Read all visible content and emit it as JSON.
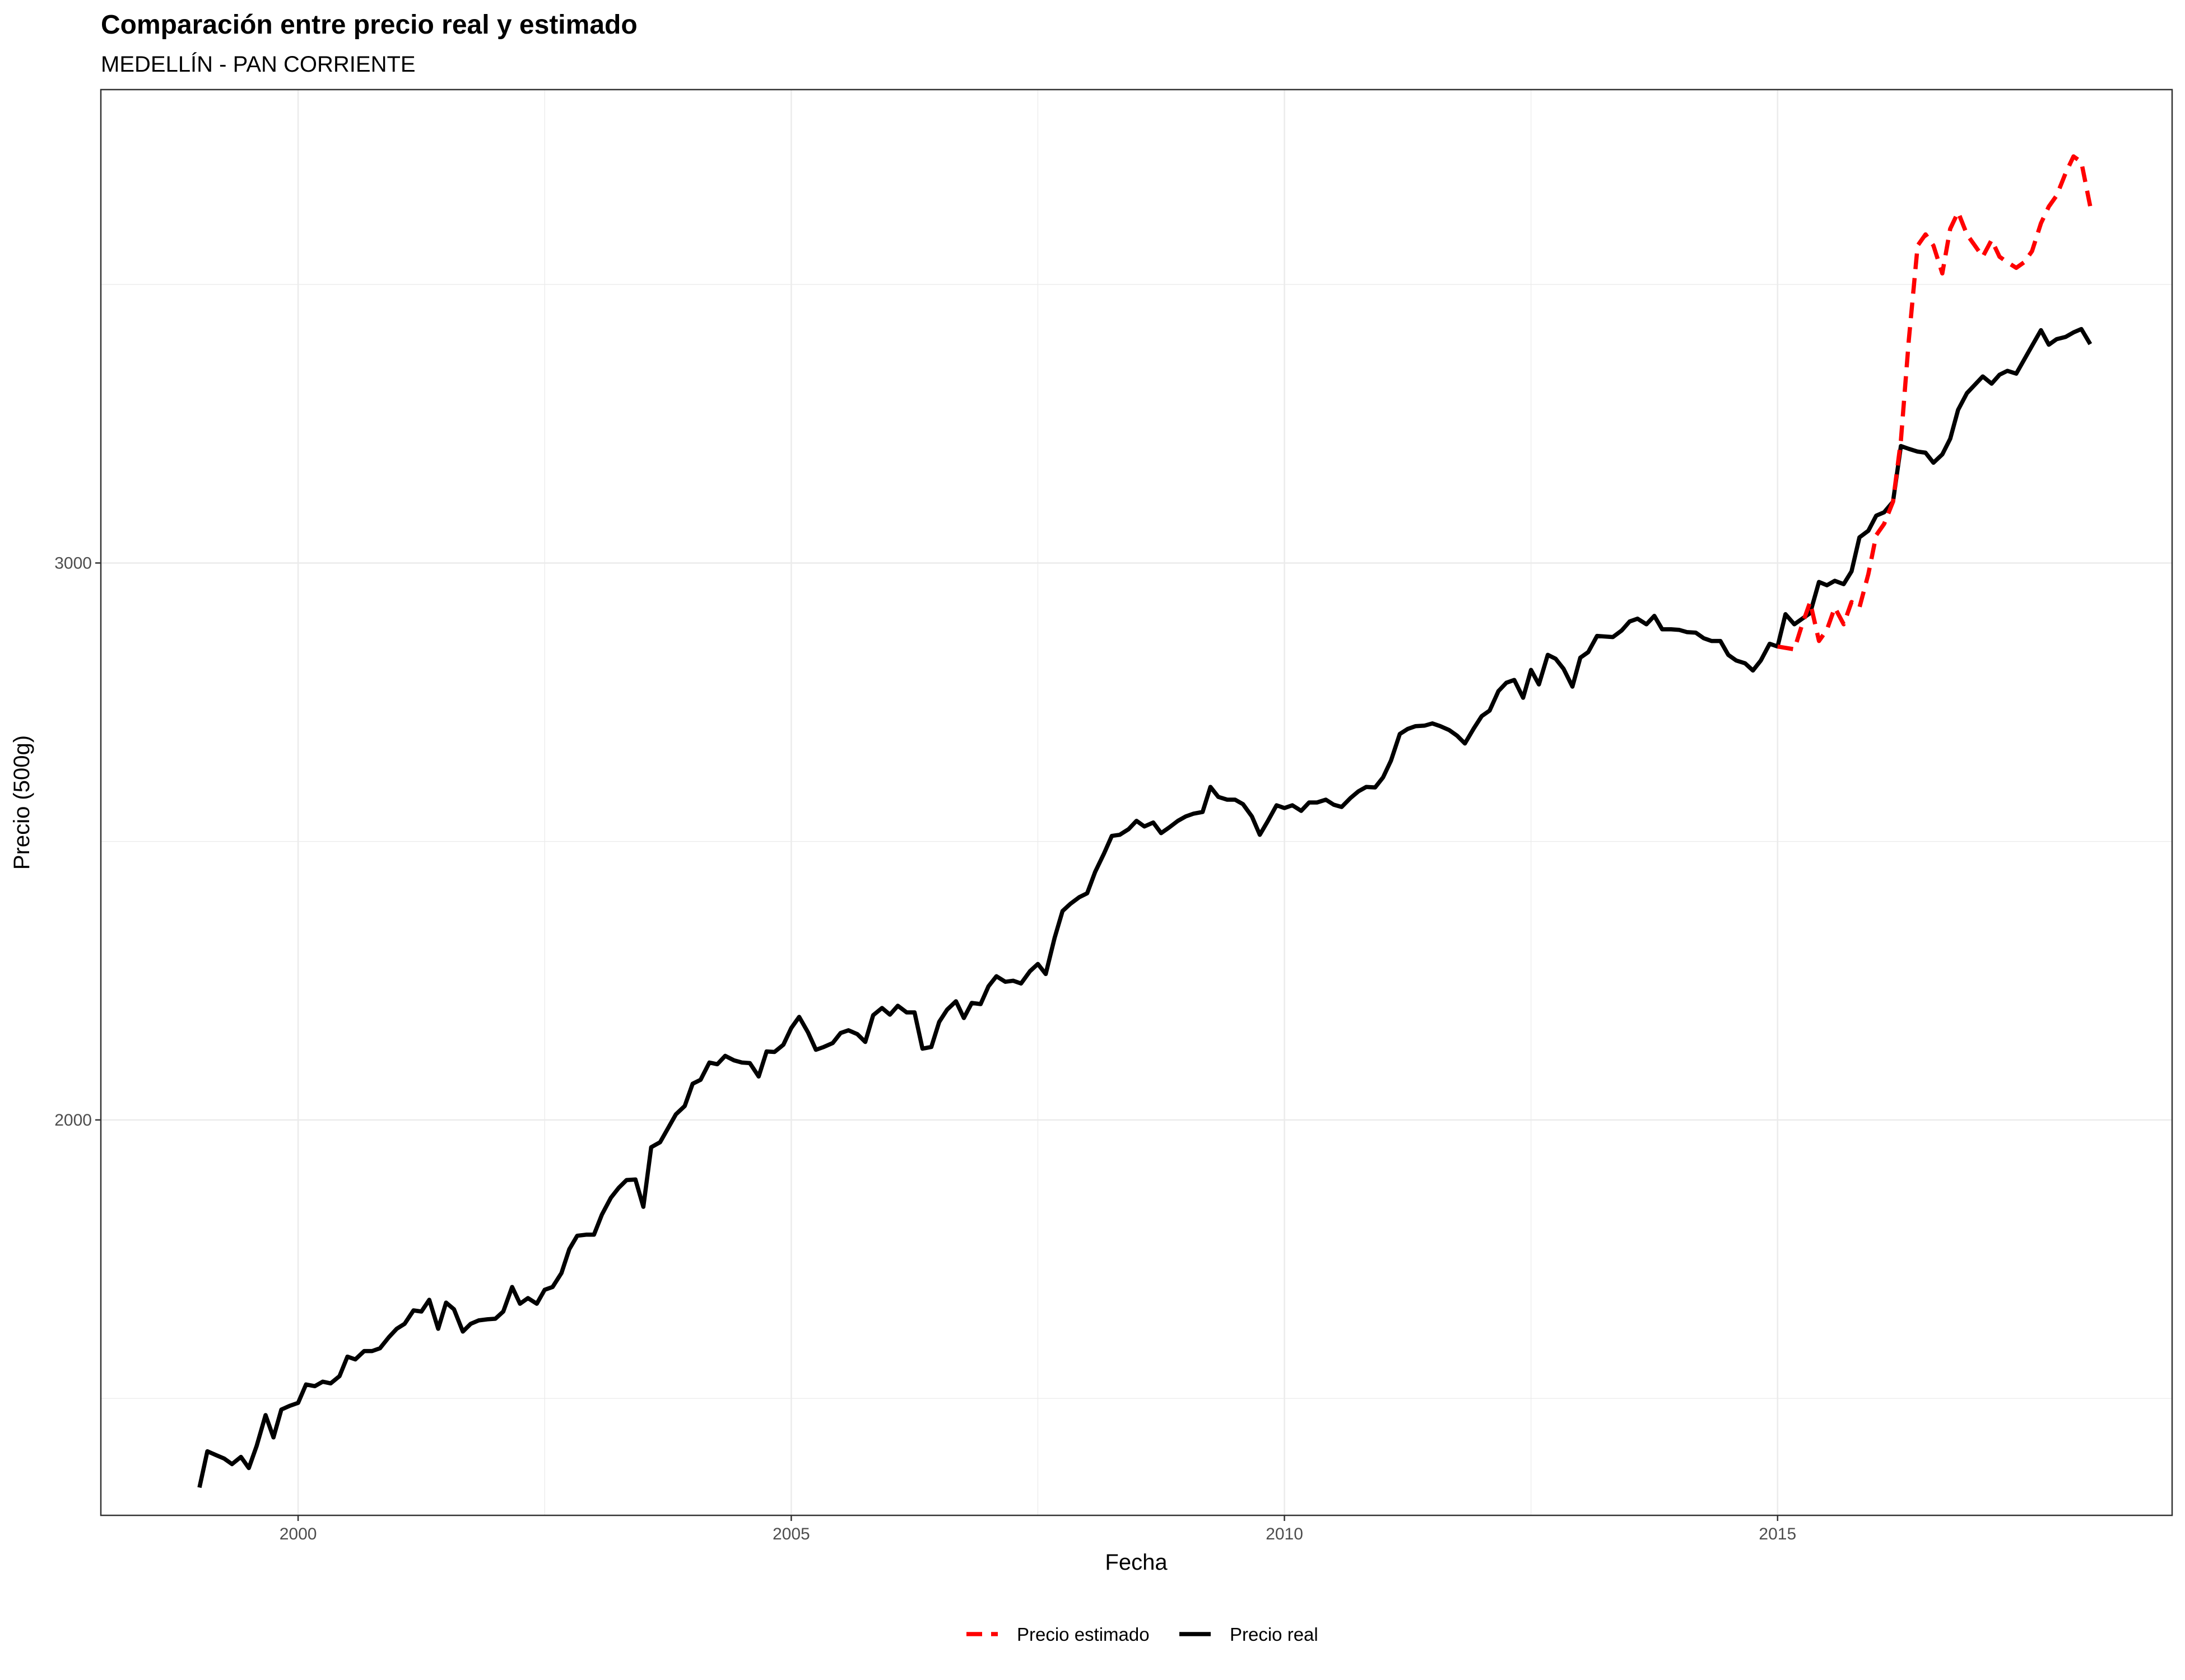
{
  "chart_data": {
    "type": "line",
    "title": "Comparación entre precio real y estimado",
    "subtitle": "MEDELLÍN - PAN CORRIENTE",
    "xlabel": "Fecha",
    "ylabel": "Precio (500g)",
    "x_ticks": [
      "2000",
      "2005",
      "2010",
      "2015"
    ],
    "y_ticks": [
      "2000",
      "3000"
    ],
    "xlim": [
      1998.0,
      2019.0
    ],
    "ylim": [
      1290,
      3850
    ],
    "grid": true,
    "legend_position": "bottom",
    "colors": {
      "estimado": "#ff0000",
      "real": "#000000"
    },
    "series": [
      {
        "name": "Precio estimado",
        "style": "dashed",
        "x": [
          2015.0,
          2015.17,
          2015.25,
          2015.33,
          2015.42,
          2015.5,
          2015.58,
          2015.67,
          2015.75,
          2015.83,
          2015.92,
          2016.0,
          2016.08,
          2016.17,
          2016.25,
          2016.33,
          2016.42,
          2016.5,
          2016.58,
          2016.67,
          2016.75,
          2016.83,
          2016.92,
          2017.0,
          2017.08,
          2017.17,
          2017.25,
          2017.33,
          2017.42,
          2017.5,
          2017.58,
          2017.67,
          2017.75,
          2017.83,
          2017.92,
          2018.0,
          2018.08,
          2018.17
        ],
        "y": [
          2850,
          2845,
          2890,
          2930,
          2860,
          2880,
          2920,
          2890,
          2930,
          2920,
          2980,
          3050,
          3070,
          3110,
          3220,
          3400,
          3570,
          3590,
          3570,
          3520,
          3600,
          3630,
          3590,
          3570,
          3550,
          3580,
          3550,
          3540,
          3530,
          3540,
          3560,
          3610,
          3640,
          3660,
          3700,
          3730,
          3720,
          3640
        ]
      },
      {
        "name": "Precio real",
        "style": "solid",
        "x": [
          1999.0,
          1999.08,
          1999.17,
          1999.25,
          1999.33,
          1999.42,
          1999.5,
          1999.58,
          1999.67,
          1999.75,
          1999.83,
          1999.92,
          2000.0,
          2000.08,
          2000.17,
          2000.25,
          2000.33,
          2000.42,
          2000.5,
          2000.58,
          2000.67,
          2000.75,
          2000.83,
          2000.92,
          2001.0,
          2001.08,
          2001.17,
          2001.25,
          2001.33,
          2001.42,
          2001.5,
          2001.58,
          2001.67,
          2001.75,
          2001.83,
          2001.92,
          2002.0,
          2002.08,
          2002.17,
          2002.25,
          2002.33,
          2002.42,
          2002.5,
          2002.58,
          2002.67,
          2002.75,
          2002.83,
          2002.92,
          2003.0,
          2003.08,
          2003.17,
          2003.25,
          2003.33,
          2003.42,
          2003.5,
          2003.58,
          2003.67,
          2003.75,
          2003.83,
          2003.92,
          2004.0,
          2004.08,
          2004.17,
          2004.25,
          2004.33,
          2004.42,
          2004.5,
          2004.58,
          2004.67,
          2004.75,
          2004.83,
          2004.92,
          2005.0,
          2005.08,
          2005.17,
          2005.25,
          2005.33,
          2005.42,
          2005.5,
          2005.58,
          2005.67,
          2005.75,
          2005.83,
          2005.92,
          2006.0,
          2006.08,
          2006.17,
          2006.25,
          2006.33,
          2006.42,
          2006.5,
          2006.58,
          2006.67,
          2006.75,
          2006.83,
          2006.92,
          2007.0,
          2007.08,
          2007.17,
          2007.25,
          2007.33,
          2007.42,
          2007.5,
          2007.58,
          2007.67,
          2007.75,
          2007.83,
          2007.92,
          2008.0,
          2008.08,
          2008.17,
          2008.25,
          2008.33,
          2008.42,
          2008.5,
          2008.58,
          2008.67,
          2008.75,
          2008.83,
          2008.92,
          2009.0,
          2009.08,
          2009.17,
          2009.25,
          2009.33,
          2009.42,
          2009.5,
          2009.58,
          2009.67,
          2009.75,
          2009.83,
          2009.92,
          2010.0,
          2010.08,
          2010.17,
          2010.25,
          2010.33,
          2010.42,
          2010.5,
          2010.58,
          2010.67,
          2010.75,
          2010.83,
          2010.92,
          2011.0,
          2011.08,
          2011.17,
          2011.25,
          2011.33,
          2011.42,
          2011.5,
          2011.58,
          2011.67,
          2011.75,
          2011.83,
          2011.92,
          2012.0,
          2012.08,
          2012.17,
          2012.25,
          2012.33,
          2012.42,
          2012.5,
          2012.58,
          2012.67,
          2012.75,
          2012.83,
          2012.92,
          2013.0,
          2013.08,
          2013.17,
          2013.25,
          2013.33,
          2013.42,
          2013.5,
          2013.58,
          2013.67,
          2013.75,
          2013.83,
          2013.92,
          2014.0,
          2014.08,
          2014.17,
          2014.25,
          2014.33,
          2014.42,
          2014.5,
          2014.58,
          2014.67,
          2014.75,
          2014.83,
          2014.92,
          2015.0,
          2015.08,
          2015.17,
          2015.25,
          2015.33,
          2015.42,
          2015.5,
          2015.58,
          2015.67,
          2015.75,
          2015.83,
          2015.92,
          2016.0,
          2016.08,
          2016.17,
          2016.25,
          2016.33,
          2016.42,
          2016.5,
          2016.58,
          2016.67,
          2016.75,
          2016.83,
          2016.92,
          2017.0,
          2017.08,
          2017.17,
          2017.25,
          2017.33,
          2017.42,
          2017.5,
          2017.58,
          2017.67,
          2017.75,
          2017.83,
          2017.92,
          2018.0,
          2018.08,
          2018.17
        ],
        "y": [
          1340,
          1405,
          1398,
          1392,
          1382,
          1395,
          1375,
          1415,
          1470,
          1430,
          1480,
          1487,
          1492,
          1525,
          1522,
          1530,
          1527,
          1540,
          1575,
          1570,
          1585,
          1585,
          1590,
          1610,
          1625,
          1634,
          1658,
          1656,
          1677,
          1625,
          1672,
          1660,
          1620,
          1634,
          1640,
          1642,
          1643,
          1656,
          1700,
          1670,
          1680,
          1670,
          1695,
          1700,
          1725,
          1768,
          1792,
          1794,
          1794,
          1830,
          1860,
          1878,
          1892,
          1893,
          1844,
          1951,
          1960,
          1985,
          2010,
          2025,
          2065,
          2072,
          2103,
          2100,
          2115,
          2107,
          2103,
          2102,
          2078,
          2123,
          2122,
          2135,
          2165,
          2185,
          2157,
          2126,
          2131,
          2138,
          2156,
          2161,
          2154,
          2140,
          2188,
          2201,
          2189,
          2205,
          2193,
          2193,
          2128,
          2131,
          2176,
          2198,
          2213,
          2183,
          2210,
          2208,
          2240,
          2258,
          2248,
          2250,
          2245,
          2267,
          2280,
          2262,
          2327,
          2375,
          2388,
          2400,
          2407,
          2445,
          2478,
          2510,
          2512,
          2522,
          2537,
          2527,
          2534,
          2515,
          2525,
          2537,
          2545,
          2550,
          2553,
          2598,
          2580,
          2575,
          2575,
          2567,
          2545,
          2512,
          2536,
          2565,
          2560,
          2565,
          2555,
          2570,
          2570,
          2575,
          2566,
          2562,
          2578,
          2590,
          2598,
          2597,
          2615,
          2645,
          2693,
          2702,
          2707,
          2708,
          2712,
          2707,
          2700,
          2690,
          2676,
          2703,
          2725,
          2735,
          2770,
          2785,
          2790,
          2758,
          2808,
          2782,
          2835,
          2828,
          2810,
          2778,
          2830,
          2840,
          2869,
          2868,
          2867,
          2879,
          2895,
          2900,
          2890,
          2905,
          2881,
          2881,
          2880,
          2876,
          2875,
          2865,
          2860,
          2860,
          2835,
          2825,
          2820,
          2807,
          2825,
          2855,
          2850,
          2908,
          2890,
          2900,
          2910,
          2966,
          2960,
          2968,
          2962,
          2985,
          3046,
          3058,
          3085,
          3091,
          3110,
          3210,
          3205,
          3200,
          3198,
          3180,
          3195,
          3223,
          3275,
          3305,
          3320,
          3335,
          3322,
          3338,
          3345,
          3340,
          3365,
          3390,
          3418,
          3392,
          3402,
          3406,
          3414,
          3420,
          3393
        ]
      }
    ]
  }
}
